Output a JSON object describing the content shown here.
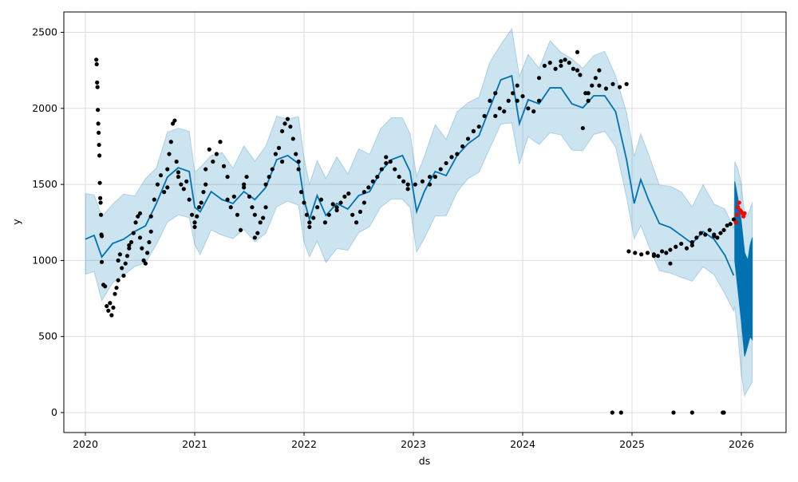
{
  "chart_data": {
    "type": "line",
    "title": "",
    "xlabel": "ds",
    "ylabel": "y",
    "xlim": [
      2019.8,
      2026.4
    ],
    "ylim": [
      -130,
      2630
    ],
    "grid": true,
    "x_ticks": [
      "2020",
      "2021",
      "2022",
      "2023",
      "2024",
      "2025",
      "2026"
    ],
    "x_tick_values": [
      2020,
      2021,
      2022,
      2023,
      2024,
      2025,
      2026
    ],
    "y_ticks": [
      "0",
      "500",
      "1000",
      "1500",
      "2000",
      "2500"
    ],
    "y_tick_values": [
      0,
      500,
      1000,
      1500,
      2000,
      2500
    ],
    "colors": {
      "forecast": "#0072B2",
      "band": "#0072B2",
      "observed": "#000000",
      "recent": "#ff0000",
      "grid": "#dddddd"
    },
    "band_halfwidth": 270,
    "forecast": [
      [
        2020.0,
        1140
      ],
      [
        2020.08,
        1165
      ],
      [
        2020.15,
        1023
      ],
      [
        2020.25,
        1112
      ],
      [
        2020.35,
        1140
      ],
      [
        2020.45,
        1190
      ],
      [
        2020.55,
        1228
      ],
      [
        2020.65,
        1375
      ],
      [
        2020.75,
        1548
      ],
      [
        2020.85,
        1610
      ],
      [
        2020.95,
        1585
      ],
      [
        2021.0,
        1350
      ],
      [
        2021.05,
        1320
      ],
      [
        2021.15,
        1453
      ],
      [
        2021.25,
        1400
      ],
      [
        2021.35,
        1375
      ],
      [
        2021.45,
        1453
      ],
      [
        2021.55,
        1400
      ],
      [
        2021.65,
        1480
      ],
      [
        2021.75,
        1663
      ],
      [
        2021.85,
        1690
      ],
      [
        2021.95,
        1637
      ],
      [
        2022.0,
        1400
      ],
      [
        2022.05,
        1270
      ],
      [
        2022.12,
        1427
      ],
      [
        2022.2,
        1296
      ],
      [
        2022.3,
        1375
      ],
      [
        2022.4,
        1338
      ],
      [
        2022.5,
        1427
      ],
      [
        2022.6,
        1453
      ],
      [
        2022.7,
        1585
      ],
      [
        2022.8,
        1663
      ],
      [
        2022.9,
        1690
      ],
      [
        2022.97,
        1585
      ],
      [
        2023.03,
        1322
      ],
      [
        2023.1,
        1453
      ],
      [
        2023.2,
        1585
      ],
      [
        2023.3,
        1558
      ],
      [
        2023.4,
        1690
      ],
      [
        2023.5,
        1768
      ],
      [
        2023.6,
        1820
      ],
      [
        2023.7,
        2004
      ],
      [
        2023.8,
        2188
      ],
      [
        2023.9,
        2214
      ],
      [
        2023.97,
        1900
      ],
      [
        2024.05,
        2057
      ],
      [
        2024.15,
        2030
      ],
      [
        2024.25,
        2135
      ],
      [
        2024.35,
        2135
      ],
      [
        2024.45,
        2030
      ],
      [
        2024.55,
        2004
      ],
      [
        2024.65,
        2083
      ],
      [
        2024.75,
        2083
      ],
      [
        2024.85,
        1978
      ],
      [
        2024.95,
        1663
      ],
      [
        2025.02,
        1375
      ],
      [
        2025.08,
        1532
      ],
      [
        2025.15,
        1400
      ],
      [
        2025.25,
        1243
      ],
      [
        2025.35,
        1217
      ],
      [
        2025.45,
        1165
      ],
      [
        2025.55,
        1112
      ],
      [
        2025.65,
        1190
      ],
      [
        2025.75,
        1140
      ],
      [
        2025.85,
        1034
      ],
      [
        2025.93,
        902
      ]
    ],
    "forecast_tail_upper": [
      [
        2025.94,
        1520
      ],
      [
        2025.97,
        1400
      ],
      [
        2026.0,
        1250
      ],
      [
        2026.03,
        1050
      ],
      [
        2026.06,
        1000
      ],
      [
        2026.08,
        1100
      ],
      [
        2026.1,
        1150
      ]
    ],
    "forecast_tail_lower": [
      [
        2025.94,
        1000
      ],
      [
        2025.97,
        800
      ],
      [
        2026.0,
        600
      ],
      [
        2026.03,
        370
      ],
      [
        2026.05,
        420
      ],
      [
        2026.08,
        500
      ],
      [
        2026.1,
        480
      ]
    ],
    "band_tail_upper": [
      [
        2025.94,
        1650
      ],
      [
        2025.97,
        1600
      ],
      [
        2026.0,
        1500
      ],
      [
        2026.03,
        1300
      ],
      [
        2026.06,
        1300
      ],
      [
        2026.1,
        1380
      ]
    ],
    "band_tail_lower": [
      [
        2025.94,
        700
      ],
      [
        2025.97,
        500
      ],
      [
        2026.0,
        250
      ],
      [
        2026.03,
        110
      ],
      [
        2026.06,
        150
      ],
      [
        2026.1,
        200
      ]
    ],
    "observed_groups": [
      {
        "x0": 2020.1,
        "x1": 2020.15,
        "ys": [
          2320,
          2290,
          2170,
          2140,
          1990,
          1900,
          1840,
          1760,
          1690,
          1510,
          1410,
          1380,
          1300,
          1170,
          1160
        ]
      },
      {
        "x0": 2020.15,
        "x1": 2020.3,
        "ys": [
          990,
          840,
          830,
          700,
          670,
          720,
          640,
          690,
          780,
          820,
          870
        ]
      },
      {
        "x0": 2020.3,
        "x1": 2020.4,
        "ys": [
          1000,
          1040,
          950,
          900,
          980,
          1030,
          1080
        ]
      },
      {
        "x0": 2020.4,
        "x1": 2020.5,
        "ys": [
          1100,
          1120,
          1180,
          1250,
          1290,
          1310
        ]
      },
      {
        "x0": 2020.5,
        "x1": 2020.6,
        "ys": [
          1150,
          1080,
          1000,
          980,
          1050,
          1120,
          1190
        ]
      },
      {
        "x0": 2020.6,
        "x1": 2020.75,
        "ys": [
          1290,
          1400,
          1500,
          1560,
          1450,
          1480
        ]
      },
      {
        "x0": 2020.75,
        "x1": 2020.85,
        "ys": [
          1600,
          1700,
          1780,
          1900,
          1920,
          1650,
          1580
        ]
      },
      {
        "x0": 2020.85,
        "x1": 2021.0,
        "ys": [
          1550,
          1500,
          1470,
          1520,
          1400,
          1300,
          1250
        ]
      },
      {
        "x0": 2021.0,
        "x1": 2021.1,
        "ys": [
          1220,
          1290,
          1350,
          1380,
          1450,
          1500
        ]
      },
      {
        "x0": 2021.1,
        "x1": 2021.3,
        "ys": [
          1600,
          1730,
          1650,
          1700,
          1780,
          1620,
          1550
        ]
      },
      {
        "x0": 2021.3,
        "x1": 2021.45,
        "ys": [
          1400,
          1350,
          1420,
          1300,
          1200,
          1480
        ]
      },
      {
        "x0": 2021.45,
        "x1": 2021.55,
        "ys": [
          1500,
          1550,
          1420,
          1350,
          1300
        ]
      },
      {
        "x0": 2021.55,
        "x1": 2021.65,
        "ys": [
          1150,
          1180,
          1250,
          1280,
          1350
        ]
      },
      {
        "x0": 2021.65,
        "x1": 2021.8,
        "ys": [
          1500,
          1550,
          1600,
          1700,
          1740,
          1650
        ]
      },
      {
        "x0": 2021.8,
        "x1": 2021.95,
        "ys": [
          1850,
          1900,
          1930,
          1880,
          1800,
          1700,
          1650
        ]
      },
      {
        "x0": 2021.95,
        "x1": 2022.05,
        "ys": [
          1600,
          1450,
          1380,
          1300,
          1250
        ]
      },
      {
        "x0": 2022.05,
        "x1": 2022.3,
        "ys": [
          1220,
          1280,
          1350,
          1400,
          1250,
          1300,
          1370,
          1330
        ]
      },
      {
        "x0": 2022.3,
        "x1": 2022.55,
        "ys": [
          1350,
          1380,
          1420,
          1440,
          1300,
          1250,
          1320,
          1380
        ]
      },
      {
        "x0": 2022.55,
        "x1": 2022.75,
        "ys": [
          1450,
          1480,
          1520,
          1550,
          1600,
          1640
        ]
      },
      {
        "x0": 2022.75,
        "x1": 2022.95,
        "ys": [
          1680,
          1650,
          1600,
          1550,
          1520,
          1500
        ]
      },
      {
        "x0": 2022.95,
        "x1": 2023.15,
        "ys": [
          1470,
          1500,
          1520,
          1550
        ]
      },
      {
        "x0": 2023.15,
        "x1": 2023.35,
        "ys": [
          1500,
          1550,
          1600,
          1640,
          1680
        ]
      },
      {
        "x0": 2023.35,
        "x1": 2023.55,
        "ys": [
          1680,
          1700,
          1750,
          1800,
          1850
        ]
      },
      {
        "x0": 2023.55,
        "x1": 2023.75,
        "ys": [
          1850,
          1880,
          1950,
          2050,
          2100
        ]
      },
      {
        "x0": 2023.75,
        "x1": 2023.95,
        "ys": [
          1950,
          2000,
          1980,
          2050,
          2100,
          2150
        ]
      },
      {
        "x0": 2023.95,
        "x1": 2024.15,
        "ys": [
          2050,
          2080,
          2000,
          1980,
          2050
        ]
      },
      {
        "x0": 2024.15,
        "x1": 2024.35,
        "ys": [
          2200,
          2280,
          2300,
          2260,
          2310
        ]
      },
      {
        "x0": 2024.35,
        "x1": 2024.5,
        "ys": [
          2280,
          2320,
          2300,
          2260,
          2370
        ]
      },
      {
        "x0": 2024.5,
        "x1": 2024.6,
        "ys": [
          2250,
          2220,
          1870,
          2100,
          2050
        ]
      },
      {
        "x0": 2024.6,
        "x1": 2024.7,
        "ys": [
          2100,
          2150,
          2200,
          2250
        ]
      },
      {
        "x0": 2024.7,
        "x1": 2024.95,
        "ys": [
          2150,
          2130,
          2160,
          2140,
          2160
        ]
      },
      {
        "x0": 2024.82,
        "x1": 2024.9,
        "ys": [
          0,
          0
        ]
      },
      {
        "x0": 2024.97,
        "x1": 2025.2,
        "ys": [
          1060,
          1050,
          1040,
          1050,
          1030
        ]
      },
      {
        "x0": 2025.2,
        "x1": 2025.35,
        "ys": [
          1040,
          1030,
          1060,
          1050,
          980
        ]
      },
      {
        "x0": 2025.35,
        "x1": 2025.55,
        "ys": [
          1070,
          1090,
          1110,
          1080,
          1120
        ]
      },
      {
        "x0": 2025.55,
        "x1": 2025.75,
        "ys": [
          1100,
          1150,
          1180,
          1170,
          1200,
          1160
        ]
      },
      {
        "x0": 2025.75,
        "x1": 2025.93,
        "ys": [
          1170,
          1150,
          1180,
          1200,
          1230,
          1240,
          1270
        ]
      },
      {
        "x0": 2025.38,
        "x1": 2025.55,
        "ys": [
          0,
          0
        ]
      },
      {
        "x0": 2025.83,
        "x1": 2025.84,
        "ys": [
          0,
          0
        ]
      }
    ],
    "recent_points": {
      "x0": 2025.95,
      "x1": 2026.03,
      "ys": [
        1250,
        1300,
        1350,
        1380,
        1330,
        1320,
        1310,
        1290,
        1310
      ]
    }
  }
}
